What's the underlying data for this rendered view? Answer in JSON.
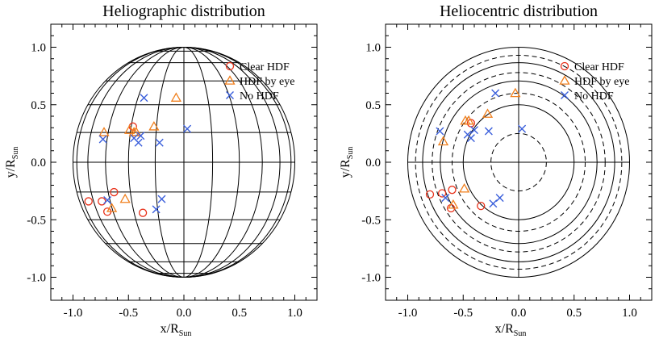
{
  "chart_data": [
    {
      "type": "scatter",
      "title": "Heliographic distribution",
      "xlabel": "x/R",
      "xlabel_sub": "Sun",
      "ylabel": "y/R",
      "ylabel_sub": "Sun",
      "xlim": [
        -1.2,
        1.2
      ],
      "ylim": [
        -1.2,
        1.2
      ],
      "xticks": [
        -1.0,
        -0.5,
        0.0,
        0.5,
        1.0
      ],
      "yticks": [
        -1.0,
        -0.5,
        0.0,
        0.5,
        1.0
      ],
      "xtick_labels": [
        "-1.0",
        "-0.5",
        "0.0",
        "0.5",
        "1.0"
      ],
      "ytick_labels": [
        "-1.0",
        "-0.5",
        "0.0",
        "0.5",
        "1.0"
      ],
      "background": "heliographic-grid",
      "legend_position": "top-right",
      "series": [
        {
          "name": "Clear HDF",
          "marker": "circle",
          "color": "#e8311a",
          "x": [
            -0.86,
            -0.74,
            -0.69,
            -0.63,
            -0.46,
            -0.37
          ],
          "y": [
            -0.34,
            -0.34,
            -0.43,
            -0.26,
            0.31,
            -0.44
          ]
        },
        {
          "name": "HDF by eye",
          "marker": "triangle",
          "color": "#f07f1c",
          "x": [
            -0.72,
            -0.49,
            -0.45,
            -0.43,
            -0.27,
            -0.07,
            -0.53,
            -0.65
          ],
          "y": [
            0.26,
            0.28,
            0.26,
            0.26,
            0.31,
            0.56,
            -0.32,
            -0.4
          ]
        },
        {
          "name": "No HDF",
          "marker": "x",
          "color": "#3a5fdb",
          "x": [
            -0.73,
            -0.45,
            -0.41,
            -0.36,
            -0.22,
            0.03,
            -0.39,
            -0.2,
            -0.25,
            -0.69
          ],
          "y": [
            0.2,
            0.21,
            0.17,
            0.56,
            0.17,
            0.29,
            0.23,
            -0.32,
            -0.41,
            -0.33
          ]
        }
      ]
    },
    {
      "type": "scatter",
      "title": "Heliocentric distribution",
      "xlabel": "x/R",
      "xlabel_sub": "Sun",
      "ylabel": "y/R",
      "ylabel_sub": "Sun",
      "xlim": [
        -1.2,
        1.2
      ],
      "ylim": [
        -1.2,
        1.2
      ],
      "xticks": [
        -1.0,
        -0.5,
        0.0,
        0.5,
        1.0
      ],
      "yticks": [
        -1.0,
        -0.5,
        0.0,
        0.5,
        1.0
      ],
      "xtick_labels": [
        "-1.0",
        "-0.5",
        "0.0",
        "0.5",
        "1.0"
      ],
      "ytick_labels": [
        "-1.0",
        "-0.5",
        "0.0",
        "0.5",
        "1.0"
      ],
      "background": "concentric-rings",
      "solid_ring_radii": [
        0.5,
        0.7071,
        0.866,
        1.0
      ],
      "dashed_ring_radii": [
        0.25,
        0.6,
        0.78,
        0.93
      ],
      "legend_position": "top-right",
      "series": [
        {
          "name": "Clear HDF",
          "marker": "circle",
          "color": "#e8311a",
          "x": [
            -0.8,
            -0.69,
            -0.6,
            -0.61,
            -0.43,
            -0.34
          ],
          "y": [
            -0.28,
            -0.27,
            -0.24,
            -0.4,
            0.34,
            -0.38
          ]
        },
        {
          "name": "HDF by eye",
          "marker": "triangle",
          "color": "#f07f1c",
          "x": [
            -0.68,
            -0.48,
            -0.45,
            -0.28,
            -0.03,
            -0.49,
            -0.59
          ],
          "y": [
            0.18,
            0.36,
            0.36,
            0.42,
            0.6,
            -0.23,
            -0.37
          ]
        },
        {
          "name": "No HDF",
          "marker": "x",
          "color": "#3a5fdb",
          "x": [
            -0.71,
            -0.46,
            -0.43,
            -0.4,
            -0.21,
            0.03,
            -0.27,
            -0.23,
            -0.17,
            -0.66
          ],
          "y": [
            0.27,
            0.24,
            0.21,
            0.28,
            0.6,
            0.29,
            0.27,
            -0.36,
            -0.31,
            -0.31
          ]
        }
      ]
    }
  ]
}
